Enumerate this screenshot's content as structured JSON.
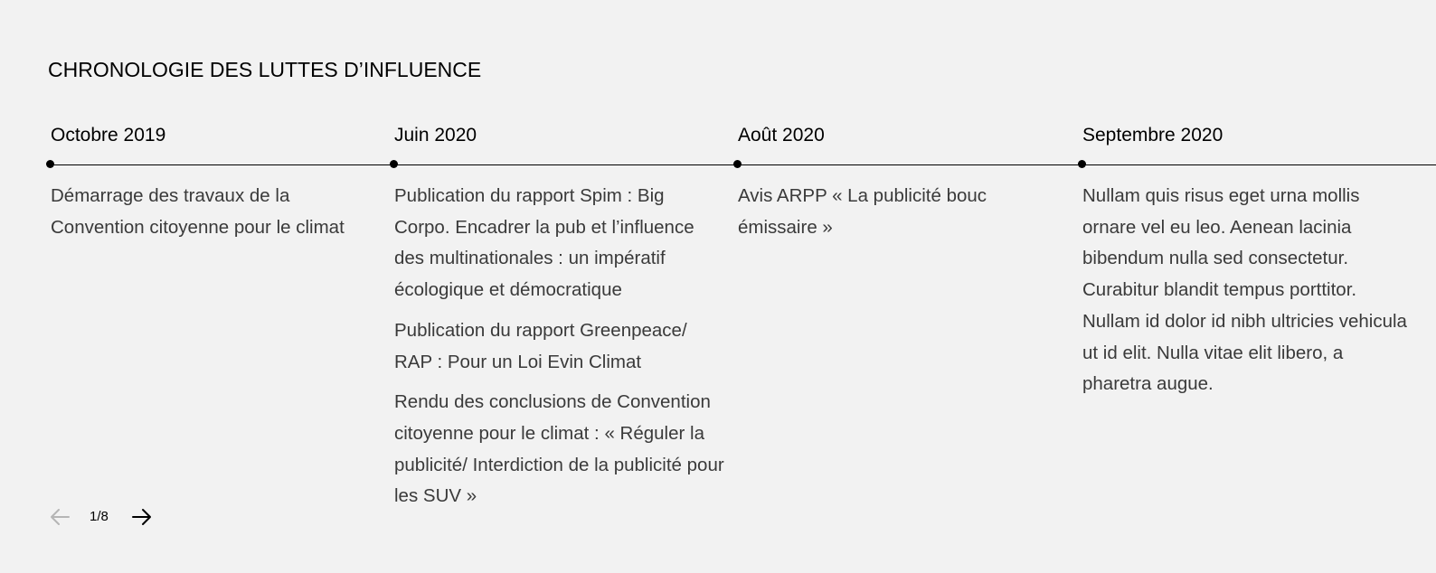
{
  "section": {
    "title": "CHRONOLOGIE DES LUTTES D’INFLUENCE"
  },
  "timeline": {
    "columns": [
      {
        "date": "Octobre 2019",
        "events": [
          "Démarrage des travaux de la Convention citoyenne pour le climat"
        ]
      },
      {
        "date": "Juin 2020",
        "events": [
          "Publication du rapport Spim : Big Corpo. Encadrer la pub et l’influence des multinationales : un impératif écologique et démocratique",
          "Publication du rapport Greenpeace/ RAP : Pour un Loi Evin Climat",
          "Rendu des conclusions de Convention citoyenne pour le climat : « Réguler la publicité/ Interdiction de la publicité pour les SUV »"
        ]
      },
      {
        "date": "Août 2020",
        "events": [
          "Avis ARPP « La publicité bouc émissaire »"
        ]
      },
      {
        "date": "Septembre 2020",
        "events": [
          "Nullam quis risus eget urna mollis ornare vel eu leo. Aenean lacinia bibendum nulla sed consectetur. Curabitur blandit tempus porttitor. Nullam id dolor id nibh ultricies vehicula ut id elit. Nulla vitae elit libero, a pharetra augue."
        ]
      }
    ]
  },
  "pager": {
    "indicator": "1/8",
    "prev_icon": "arrow-left-icon",
    "next_icon": "arrow-right-icon",
    "prev_disabled_color": "#b5b5b5",
    "next_color": "#000000"
  }
}
